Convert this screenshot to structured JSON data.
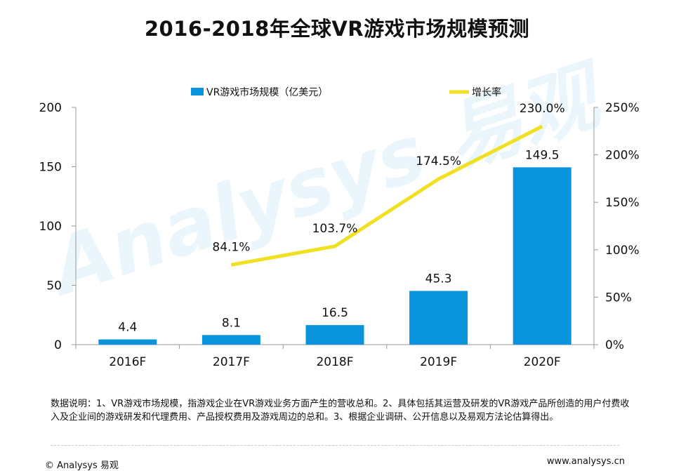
{
  "title": "2016-2018年全球VR游戏市场规模预测",
  "chart_data": {
    "type": "bar+line",
    "title": "2016-2018年全球VR游戏市场规模预测",
    "categories": [
      "2016F",
      "2017F",
      "2018F",
      "2019F",
      "2020F"
    ],
    "series": [
      {
        "name": "VR游戏市场规模（亿美元）",
        "type": "bar",
        "axis": "left",
        "values": [
          4.4,
          8.1,
          16.5,
          45.3,
          149.5
        ],
        "labels": [
          "4.4",
          "8.1",
          "16.5",
          "45.3",
          "149.5"
        ],
        "color": "#0a94db"
      },
      {
        "name": "增长率",
        "type": "line",
        "axis": "right",
        "values": [
          null,
          84.1,
          103.7,
          174.5,
          230.0
        ],
        "labels": [
          "",
          "84.1%",
          "103.7%",
          "174.5%",
          "230.0%"
        ],
        "color": "#f0e020"
      }
    ],
    "y_left": {
      "min": 0,
      "max": 200,
      "ticks": [
        "0",
        "50",
        "100",
        "150",
        "200"
      ],
      "tick_values": [
        0,
        50,
        100,
        150,
        200
      ]
    },
    "y_right": {
      "min": 0,
      "max": 250,
      "ticks": [
        "0%",
        "50%",
        "100%",
        "150%",
        "200%",
        "250%"
      ],
      "tick_values": [
        0,
        50,
        100,
        150,
        200,
        250
      ]
    },
    "legend_position": "top",
    "watermark": "Analysys 易观"
  },
  "note": "数据说明：1、VR游戏市场规模，指游戏企业在VR游戏业务方面产生的营收总和。2、具体包括其运营及研发的VR游戏产品所创造的用户付费收入及企业间的游戏研发和代理费用、产品授权费用及游戏周边的总和。3、根据企业调研、公开信息以及易观方法论估算得出。",
  "footer": {
    "copyright": "© Analysys 易观",
    "website": "www.analysys.cn"
  }
}
